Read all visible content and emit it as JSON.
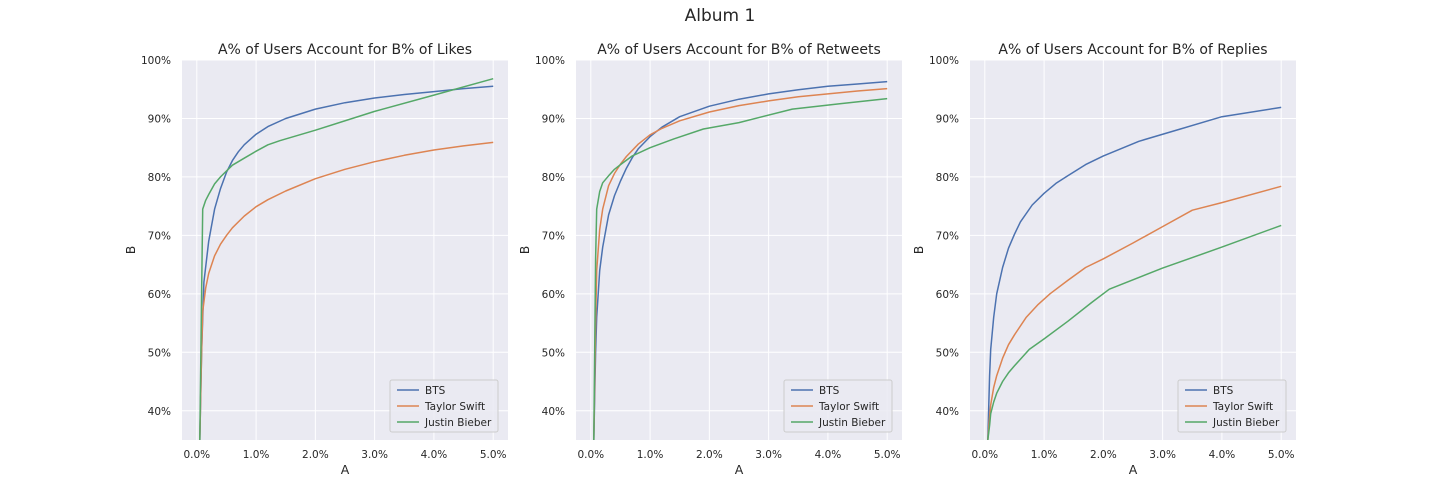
{
  "figure": {
    "suptitle": "Album 1"
  },
  "colors": {
    "panel_bg": "#eaeaf2",
    "grid": "#ffffff",
    "BTS": "#4c72b0",
    "Taylor Swift": "#dd8452",
    "Justin Bieber": "#55a868"
  },
  "chart_data": [
    {
      "type": "line",
      "title": "A% of Users Account for B% of Likes",
      "xlabel": "A",
      "ylabel": "B",
      "xlim": [
        -0.25,
        5.25
      ],
      "ylim": [
        35,
        100
      ],
      "xticks": [
        0,
        1,
        2,
        3,
        4,
        5
      ],
      "xtick_labels": [
        "0.0%",
        "1.0%",
        "2.0%",
        "3.0%",
        "4.0%",
        "5.0%"
      ],
      "yticks": [
        40,
        50,
        60,
        70,
        80,
        90,
        100
      ],
      "ytick_labels": [
        "40%",
        "50%",
        "60%",
        "70%",
        "80%",
        "90%",
        "100%"
      ],
      "grid": true,
      "legend_position": "lower right",
      "series": [
        {
          "name": "BTS",
          "x": [
            0.05,
            0.08,
            0.12,
            0.2,
            0.3,
            0.4,
            0.5,
            0.6,
            0.7,
            0.8,
            1.0,
            1.2,
            1.5,
            2.0,
            2.5,
            3.0,
            3.5,
            4.0,
            4.5,
            5.0
          ],
          "y": [
            35,
            50,
            62,
            69,
            74.5,
            78,
            80.8,
            82.8,
            84.3,
            85.5,
            87.3,
            88.6,
            90,
            91.6,
            92.7,
            93.5,
            94.1,
            94.6,
            95.1,
            95.5
          ]
        },
        {
          "name": "Taylor Swift",
          "x": [
            0.05,
            0.08,
            0.1,
            0.15,
            0.2,
            0.3,
            0.4,
            0.5,
            0.6,
            0.8,
            1.0,
            1.2,
            1.5,
            2.0,
            2.5,
            3.0,
            3.5,
            4.0,
            4.5,
            5.0
          ],
          "y": [
            35,
            50,
            57,
            61,
            63.5,
            66.5,
            68.5,
            70,
            71.3,
            73.3,
            74.9,
            76.1,
            77.6,
            79.7,
            81.3,
            82.6,
            83.7,
            84.6,
            85.3,
            85.9
          ]
        },
        {
          "name": "Justin Bieber",
          "x": [
            0.05,
            0.08,
            0.1,
            0.15,
            0.2,
            0.3,
            0.4,
            0.6,
            0.8,
            1.0,
            1.2,
            1.4,
            2.0,
            3.0,
            4.0,
            5.0
          ],
          "y": [
            35,
            60,
            74.5,
            76,
            77,
            78.8,
            80,
            82,
            83.2,
            84.4,
            85.5,
            86.2,
            88,
            91.2,
            94,
            96.8
          ]
        }
      ]
    },
    {
      "type": "line",
      "title": "A% of Users Account for B% of Retweets",
      "xlabel": "A",
      "ylabel": "B",
      "xlim": [
        -0.25,
        5.25
      ],
      "ylim": [
        35,
        100
      ],
      "xticks": [
        0,
        1,
        2,
        3,
        4,
        5
      ],
      "xtick_labels": [
        "0.0%",
        "1.0%",
        "2.0%",
        "3.0%",
        "4.0%",
        "5.0%"
      ],
      "yticks": [
        40,
        50,
        60,
        70,
        80,
        90,
        100
      ],
      "ytick_labels": [
        "40%",
        "50%",
        "60%",
        "70%",
        "80%",
        "90%",
        "100%"
      ],
      "grid": true,
      "legend_position": "lower right",
      "series": [
        {
          "name": "BTS",
          "x": [
            0.05,
            0.08,
            0.1,
            0.15,
            0.2,
            0.3,
            0.4,
            0.5,
            0.6,
            0.7,
            0.8,
            1.0,
            1.2,
            1.5,
            2.0,
            2.5,
            3.0,
            3.5,
            4.0,
            4.5,
            5.0
          ],
          "y": [
            35,
            50,
            56,
            64,
            68,
            73.5,
            76.8,
            79.3,
            81.5,
            83.3,
            84.8,
            86.9,
            88.5,
            90.3,
            92.1,
            93.3,
            94.2,
            94.9,
            95.5,
            95.9,
            96.3
          ]
        },
        {
          "name": "Taylor Swift",
          "x": [
            0.05,
            0.08,
            0.1,
            0.15,
            0.2,
            0.3,
            0.4,
            0.5,
            0.6,
            0.8,
            1.0,
            1.2,
            1.5,
            2.0,
            2.5,
            3.0,
            3.5,
            4.0,
            4.5,
            5.0
          ],
          "y": [
            35,
            55,
            64,
            71,
            74.5,
            78.5,
            80.6,
            82.2,
            83.5,
            85.6,
            87.2,
            88.3,
            89.6,
            91.1,
            92.2,
            93,
            93.7,
            94.2,
            94.7,
            95.1
          ]
        },
        {
          "name": "Justin Bieber",
          "x": [
            0.05,
            0.08,
            0.1,
            0.15,
            0.2,
            0.3,
            0.4,
            0.5,
            0.7,
            1.0,
            1.4,
            1.9,
            2.5,
            3.4,
            4.2,
            5.0
          ],
          "y": [
            35,
            66,
            74.5,
            77.5,
            79,
            80.2,
            81.3,
            82.1,
            83.6,
            85,
            86.5,
            88.2,
            89.3,
            91.6,
            92.5,
            93.4
          ]
        }
      ]
    },
    {
      "type": "line",
      "title": "A% of Users Account for B% of Replies",
      "xlabel": "A",
      "ylabel": "B",
      "xlim": [
        -0.25,
        5.25
      ],
      "ylim": [
        35,
        100
      ],
      "xticks": [
        0,
        1,
        2,
        3,
        4,
        5
      ],
      "xtick_labels": [
        "0.0%",
        "1.0%",
        "2.0%",
        "3.0%",
        "4.0%",
        "5.0%"
      ],
      "yticks": [
        40,
        50,
        60,
        70,
        80,
        90,
        100
      ],
      "ytick_labels": [
        "40%",
        "50%",
        "60%",
        "70%",
        "80%",
        "90%",
        "100%"
      ],
      "grid": true,
      "legend_position": "lower right",
      "series": [
        {
          "name": "BTS",
          "x": [
            0.05,
            0.08,
            0.1,
            0.15,
            0.2,
            0.3,
            0.4,
            0.5,
            0.6,
            0.8,
            1.0,
            1.2,
            1.4,
            1.7,
            2.0,
            2.6,
            3.3,
            4.0,
            5.0
          ],
          "y": [
            35,
            46,
            50.5,
            56,
            60,
            64.5,
            67.8,
            70.2,
            72.3,
            75.2,
            77.2,
            78.9,
            80.2,
            82.1,
            83.6,
            86.1,
            88.2,
            90.3,
            91.9
          ]
        },
        {
          "name": "Taylor Swift",
          "x": [
            0.05,
            0.08,
            0.1,
            0.15,
            0.2,
            0.3,
            0.4,
            0.5,
            0.7,
            0.9,
            1.1,
            1.4,
            1.7,
            2.0,
            2.5,
            3.0,
            3.5,
            4.0,
            5.0
          ],
          "y": [
            35,
            39,
            41,
            44,
            46,
            49,
            51.3,
            53,
            56,
            58.2,
            60,
            62.3,
            64.5,
            66,
            68.7,
            71.5,
            74.3,
            75.6,
            78.4
          ]
        },
        {
          "name": "Justin Bieber",
          "x": [
            0.05,
            0.08,
            0.1,
            0.15,
            0.2,
            0.3,
            0.4,
            0.5,
            0.75,
            1.0,
            1.4,
            1.8,
            2.1,
            3.0,
            4.0,
            5.0
          ],
          "y": [
            35,
            37.5,
            39.5,
            41.5,
            43,
            45,
            46.5,
            47.7,
            50.5,
            52.3,
            55.3,
            58.5,
            60.8,
            64.4,
            68,
            71.7
          ]
        }
      ]
    }
  ]
}
